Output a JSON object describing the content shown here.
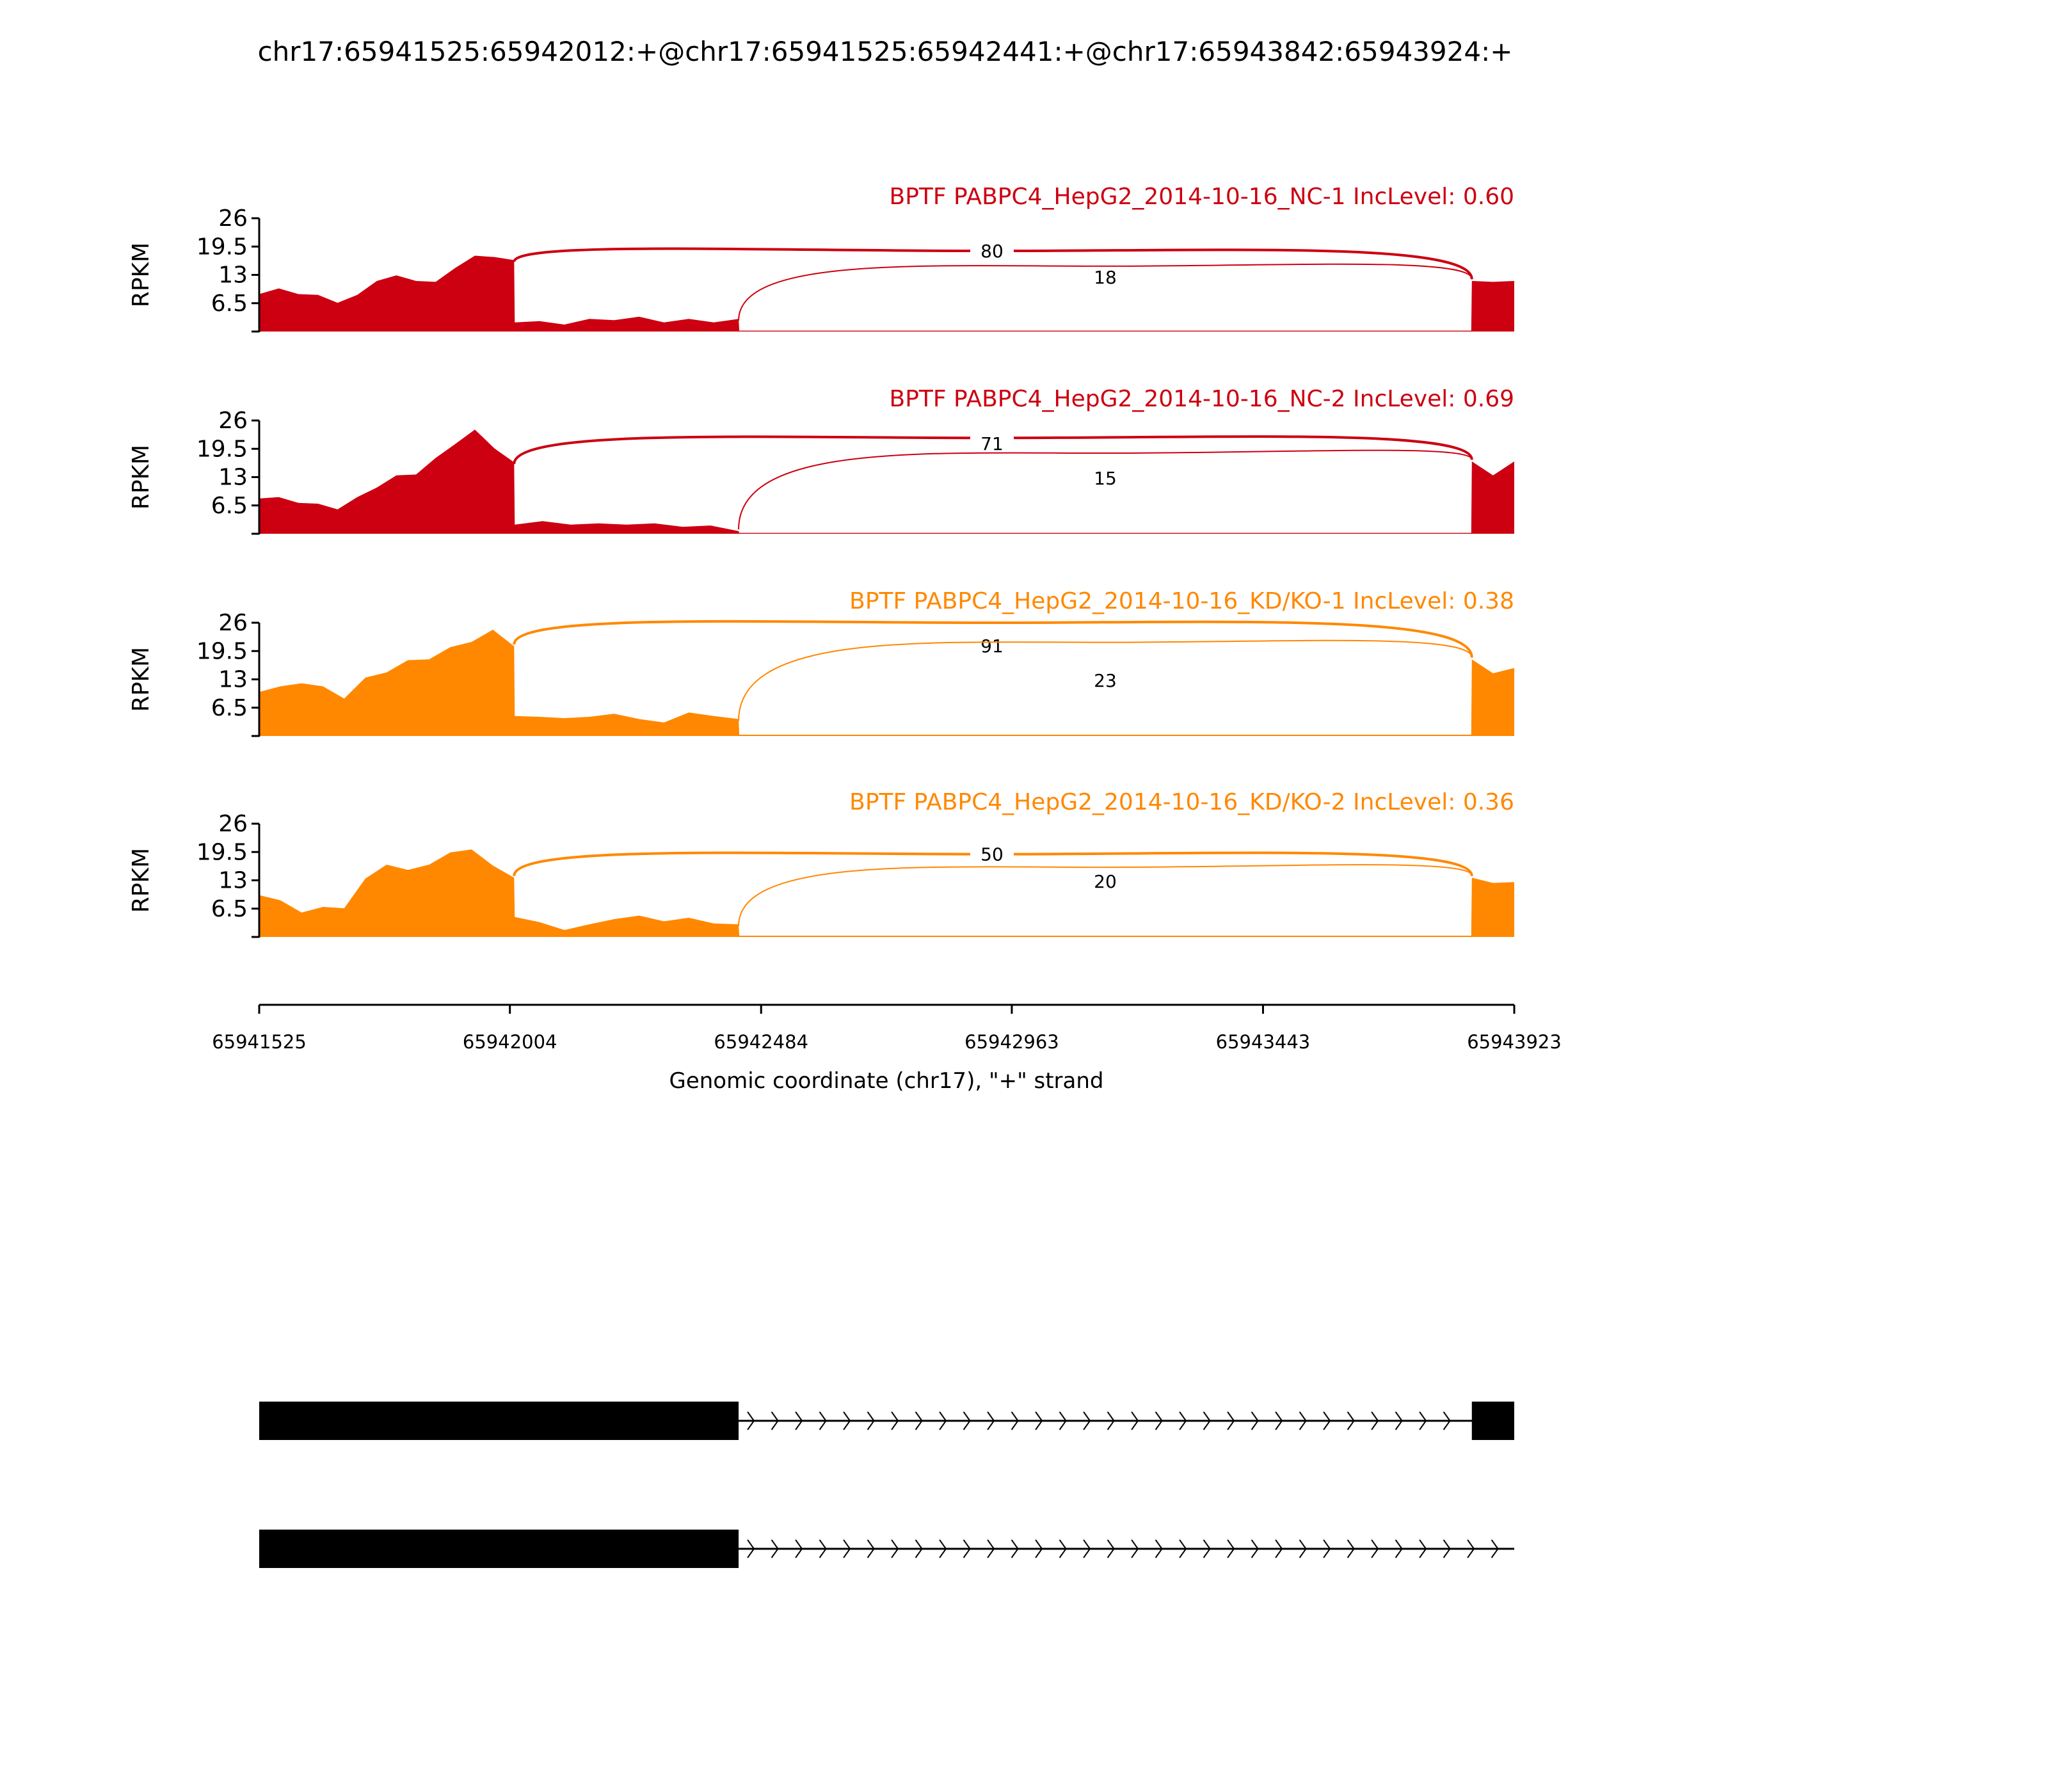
{
  "chart_data": {
    "type": "area",
    "title": "chr17:65941525:65942012:+@chr17:65941525:65942441:+@chr17:65943842:65943924:+",
    "xlabel": "Genomic coordinate (chr17), \"+\" strand",
    "ylabel": "RPKM",
    "xlim": [
      65941525,
      65943923
    ],
    "ylim": [
      0,
      26
    ],
    "xticks": [
      "65941525",
      "65942004",
      "65942484",
      "65942963",
      "65943443",
      "65943923"
    ],
    "yticks": [
      "6.5",
      "13",
      "19.5",
      "26"
    ],
    "exons": {
      "exon1_end": 65942012,
      "exon2_end": 65942441,
      "exon3_start": 65943842
    },
    "samples": [
      {
        "label": "BPTF PABPC4_HepG2_2014-10-16_NC-1 IncLevel: 0.60",
        "color": "#cc0011",
        "exon1": [
          9,
          9.5,
          9,
          8,
          7,
          8,
          12,
          12.5,
          12,
          11,
          15,
          17,
          17.5,
          16
        ],
        "exon2": [
          2.5,
          2,
          2,
          2.5,
          3,
          3,
          2.5,
          2.5,
          2.5,
          2.5
        ],
        "intron": 0.2,
        "exon3": [
          12,
          11,
          12
        ],
        "junctions": [
          {
            "count": "80",
            "peak": 18.5
          },
          {
            "count": "18",
            "peak": 15
          }
        ]
      },
      {
        "label": "BPTF PABPC4_HepG2_2014-10-16_NC-2 IncLevel: 0.69",
        "color": "#cc0011",
        "exon1": [
          8.5,
          8,
          7.5,
          6.5,
          6,
          8,
          11,
          13,
          14,
          17,
          21,
          23.5,
          20,
          16
        ],
        "exon2": [
          2.5,
          2.5,
          2.5,
          2,
          2.5,
          2,
          2,
          1.5,
          1
        ],
        "intron": 0.2,
        "exon3": [
          17,
          13,
          17
        ],
        "junctions": [
          {
            "count": "71",
            "peak": 22
          },
          {
            "count": "15",
            "peak": 18.5
          }
        ]
      },
      {
        "label": "BPTF PABPC4_HepG2_2014-10-16_KD/KO-1 IncLevel: 0.38",
        "color": "#ff8800",
        "exon1": [
          10.5,
          11,
          12.5,
          11,
          9,
          13,
          15,
          17,
          18,
          20,
          22,
          24,
          21
        ],
        "exon2": [
          5,
          4,
          4.5,
          4,
          5.5,
          3.5,
          3.5,
          5,
          5,
          3.5
        ],
        "intron": 0.3,
        "exon3": [
          18,
          14,
          16
        ],
        "junctions": [
          {
            "count": "91",
            "peak": 26
          },
          {
            "count": "23",
            "peak": 21.5
          }
        ]
      },
      {
        "label": "BPTF PABPC4_HepG2_2014-10-16_KD/KO-2 IncLevel: 0.36",
        "color": "#ff8800",
        "exon1": [
          10,
          8,
          6,
          6.5,
          7,
          13,
          17,
          15,
          17,
          19,
          20.5,
          16,
          14
        ],
        "exon2": [
          5,
          3,
          2,
          2.5,
          4.5,
          4.5,
          4,
          4,
          3.5,
          2.5
        ],
        "intron": 0.3,
        "exon3": [
          14,
          12,
          13
        ],
        "junctions": [
          {
            "count": "50",
            "peak": 19
          },
          {
            "count": "20",
            "peak": 16
          }
        ]
      }
    ],
    "grid": false
  }
}
